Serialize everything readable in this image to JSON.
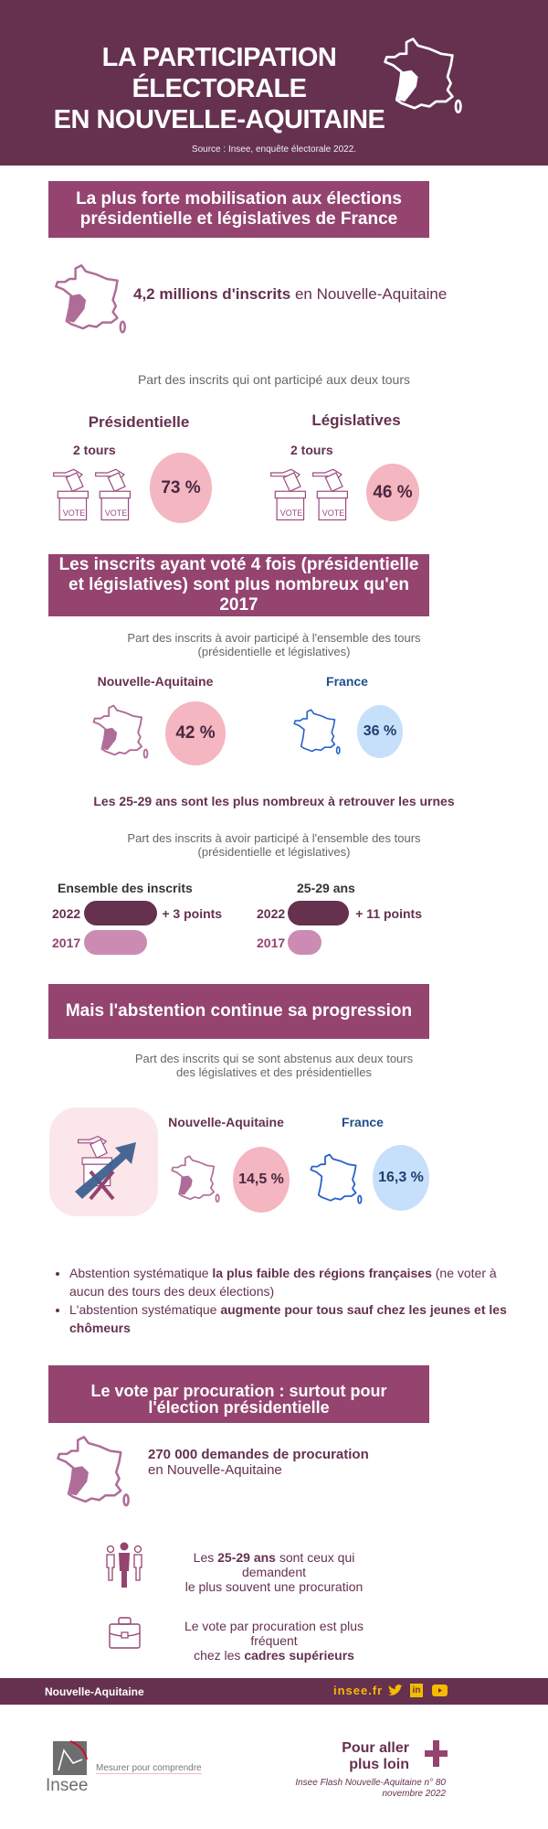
{
  "header": {
    "title_line1": "LA PARTICIPATION ÉLECTORALE",
    "title_line2": "EN NOUVELLE-AQUITAINE",
    "source": "Source : Insee, enquête électorale 2022."
  },
  "section1": {
    "title": "La plus forte mobilisation aux élections présidentielle et législatives de France",
    "inscrits_bold": "4,2 millions d'inscrits",
    "inscrits_rest": " en Nouvelle-Aquitaine",
    "subtitle": "Part des inscrits qui ont participé aux deux tours",
    "presidentielle": {
      "label": "Présidentielle",
      "tours": "2 tours",
      "value": "73 %"
    },
    "legislatives": {
      "label": "Législatives",
      "tours": "2 tours",
      "value": "46 %"
    },
    "vote_label": "VOTE"
  },
  "section2": {
    "title": "Les inscrits ayant voté 4 fois (présidentielle et législatives) sont plus nombreux qu'en 2017",
    "subtitle1": "Part des inscrits à avoir participé à l'ensemble des tours",
    "subtitle2": "(présidentielle et législatives)",
    "na": {
      "label": "Nouvelle-Aquitaine",
      "value": "42 %"
    },
    "fr": {
      "label": "France",
      "value": "36 %"
    },
    "headline": "Les 25-29 ans sont les plus nombreux à retrouver les urnes",
    "groups": [
      {
        "label": "Ensemble des inscrits",
        "delta": "+ 3 points",
        "bars": [
          {
            "year": "2022",
            "fill": 0.98
          },
          {
            "year": "2017",
            "fill": 0.84
          }
        ]
      },
      {
        "label": "25-29 ans",
        "delta": "+ 11 points",
        "bars": [
          {
            "year": "2022",
            "fill": 0.82
          },
          {
            "year": "2017",
            "fill": 0.45
          }
        ]
      }
    ]
  },
  "section3": {
    "title": "Mais l'abstention continue sa progression",
    "subtitle1": "Part des inscrits qui se sont abstenus aux deux tours",
    "subtitle2": "des législatives et des présidentielles",
    "na": {
      "label": "Nouvelle-Aquitaine",
      "value": "14,5 %"
    },
    "fr": {
      "label": "France",
      "value": "16,3 %"
    },
    "bullets": [
      {
        "a": "Abstention systématique ",
        "b": "la plus faible des régions françaises",
        "c": " (ne voter à aucun des tours des deux élections)"
      },
      {
        "a": "L'abstention systématique ",
        "b": "augmente pour tous sauf chez les jeunes et les chômeurs",
        "c": ""
      }
    ]
  },
  "section4": {
    "title": "Le vote par procuration : surtout pour l'élection présidentielle",
    "demandes_bold": "270 000 demandes de procuration",
    "demandes_rest": "en Nouvelle-Aquitaine",
    "age_a": "Les ",
    "age_b": "25-29 ans",
    "age_c": " sont ceux qui demandent",
    "age_d": "le plus souvent une procuration",
    "cadres_a": "Le vote par procuration est plus fréquent",
    "cadres_b": "chez les ",
    "cadres_c": "cadres supérieurs"
  },
  "footer": {
    "region": "Nouvelle-Aquitaine",
    "site": "insee.fr"
  },
  "bottom": {
    "logo_text": "Insee",
    "tagline": "Mesurer pour comprendre",
    "more_line1": "Pour aller",
    "more_line2": "plus loin",
    "ref_line1": "Insee Flash Nouvelle-Aquitaine n° 80",
    "ref_line2": "novembre 2022"
  },
  "colors": {
    "dark": "#65314F",
    "banner": "#94446F",
    "pink": "#F4B6C0",
    "blue": "#C6E0FB",
    "yellow": "#F5BB00"
  }
}
